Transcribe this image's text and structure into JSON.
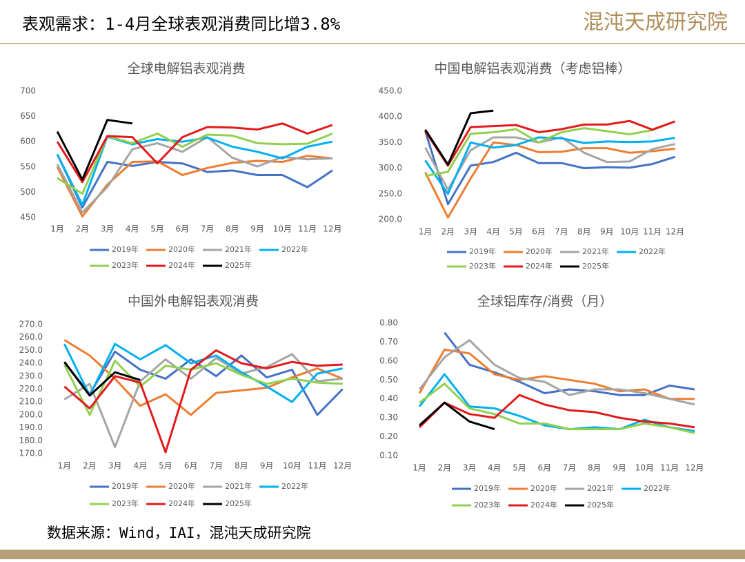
{
  "title": "表观需求：1-4月全球表观消费同比增3.8%",
  "logo": "混沌天成研究院",
  "source": "数据来源：Wind，IAI，混沌天成研究院",
  "chart_data": [
    {
      "type": "line",
      "title": "全球电解铝表观消费",
      "categories": [
        "1月",
        "2月",
        "3月",
        "4月",
        "5月",
        "6月",
        "7月",
        "8月",
        "9月",
        "10月",
        "11月",
        "12月"
      ],
      "ylim": [
        450,
        700
      ],
      "yticks": [
        450,
        500,
        550,
        600,
        650,
        700
      ],
      "grid": false,
      "series": [
        {
          "name": "2019年",
          "color": "#4472c4",
          "values": [
            575,
            470,
            560,
            552,
            560,
            557,
            540,
            543,
            534,
            534,
            510,
            543
          ]
        },
        {
          "name": "2020年",
          "color": "#ed7d31",
          "values": [
            550,
            452,
            515,
            560,
            561,
            534,
            548,
            558,
            562,
            560,
            572,
            567
          ]
        },
        {
          "name": "2021年",
          "color": "#a5a5a5",
          "values": [
            555,
            460,
            510,
            585,
            597,
            580,
            609,
            568,
            551,
            570,
            565,
            567
          ]
        },
        {
          "name": "2022年",
          "color": "#00b0f0",
          "values": [
            575,
            475,
            610,
            595,
            605,
            600,
            608,
            590,
            580,
            567,
            590,
            600
          ]
        },
        {
          "name": "2023年",
          "color": "#92d050",
          "values": [
            528,
            497,
            611,
            597,
            616,
            590,
            614,
            612,
            597,
            595,
            596,
            616
          ]
        },
        {
          "name": "2024年",
          "color": "#e31a1c",
          "values": [
            600,
            520,
            611,
            609,
            557,
            609,
            629,
            628,
            624,
            636,
            616,
            633
          ]
        },
        {
          "name": "2025年",
          "color": "#000000",
          "values": [
            620,
            525,
            643,
            636,
            null,
            null,
            null,
            null,
            null,
            null,
            null,
            null
          ]
        }
      ]
    },
    {
      "type": "line",
      "title": "中国电解铝表观消费（考虑铝棒）",
      "categories": [
        "1月",
        "2月",
        "3月",
        "4月",
        "5月",
        "6月",
        "7月",
        "8月",
        "9月",
        "10月",
        "11月",
        "12月"
      ],
      "ylim": [
        200,
        450
      ],
      "yticks": [
        {
          "value": 200,
          "label": "200.0"
        },
        {
          "value": 250,
          "label": "250.0"
        },
        {
          "value": 300,
          "label": "300.0"
        },
        {
          "value": 350,
          "label": "350.0"
        },
        {
          "value": 400,
          "label": "400.0"
        },
        {
          "value": 450,
          "label": "450.0"
        }
      ],
      "grid": false,
      "series": [
        {
          "name": "2019年",
          "color": "#4472c4",
          "values": [
            372,
            230,
            305,
            312,
            330,
            310,
            310,
            300,
            302,
            301,
            308,
            322
          ]
        },
        {
          "name": "2020年",
          "color": "#ed7d31",
          "values": [
            292,
            204,
            280,
            350,
            345,
            331,
            332,
            339,
            339,
            330,
            333,
            338
          ]
        },
        {
          "name": "2021年",
          "color": "#a5a5a5",
          "values": [
            340,
            258,
            335,
            360,
            360,
            350,
            360,
            330,
            312,
            313,
            337,
            347
          ]
        },
        {
          "name": "2022年",
          "color": "#00b0f0",
          "values": [
            315,
            250,
            350,
            340,
            345,
            360,
            358,
            349,
            352,
            351,
            352,
            359
          ]
        },
        {
          "name": "2023年",
          "color": "#92d050",
          "values": [
            285,
            293,
            367,
            370,
            376,
            350,
            370,
            378,
            372,
            366,
            374,
            391
          ]
        },
        {
          "name": "2024年",
          "color": "#e31a1c",
          "values": [
            372,
            305,
            380,
            382,
            384,
            370,
            376,
            385,
            385,
            392,
            375,
            391
          ]
        },
        {
          "name": "2025年",
          "color": "#000000",
          "values": [
            375,
            307,
            407,
            412,
            null,
            null,
            null,
            null,
            null,
            null,
            null,
            null
          ]
        }
      ]
    },
    {
      "type": "line",
      "title": "中国外电解铝表观消费",
      "categories": [
        "1月",
        "2月",
        "3月",
        "4月",
        "5月",
        "6月",
        "7月",
        "8月",
        "9月",
        "10月",
        "11月",
        "12月"
      ],
      "ylim": [
        170,
        270
      ],
      "yticks": [
        {
          "value": 170,
          "label": "170.0"
        },
        {
          "value": 180,
          "label": "180.0"
        },
        {
          "value": 190,
          "label": "190.0"
        },
        {
          "value": 200,
          "label": "200.0"
        },
        {
          "value": 210,
          "label": "210.0"
        },
        {
          "value": 220,
          "label": "220.0"
        },
        {
          "value": 230,
          "label": "230.0"
        },
        {
          "value": 240,
          "label": "240.0"
        },
        {
          "value": 250,
          "label": "250.0"
        },
        {
          "value": 260,
          "label": "260.0"
        },
        {
          "value": 270,
          "label": "270.0"
        }
      ],
      "grid": false,
      "series": [
        {
          "name": "2019年",
          "color": "#4472c4",
          "values": [
            241,
            216,
            249,
            235,
            228,
            243,
            230,
            246,
            229,
            235,
            200,
            220
          ]
        },
        {
          "name": "2020年",
          "color": "#ed7d31",
          "values": [
            258,
            246,
            228,
            207,
            216,
            200,
            217,
            219,
            221,
            229,
            236,
            228
          ]
        },
        {
          "name": "2021年",
          "color": "#a5a5a5",
          "values": [
            212,
            224,
            175,
            226,
            243,
            228,
            244,
            232,
            237,
            247,
            226,
            228
          ]
        },
        {
          "name": "2022年",
          "color": "#00b0f0",
          "values": [
            255,
            215,
            255,
            243,
            254,
            240,
            246,
            233,
            222,
            210,
            232,
            236
          ]
        },
        {
          "name": "2023年",
          "color": "#92d050",
          "values": [
            239,
            200,
            242,
            222,
            238,
            235,
            240,
            231,
            224,
            228,
            225,
            224
          ]
        },
        {
          "name": "2024年",
          "color": "#e31a1c",
          "values": [
            222,
            205,
            230,
            225,
            171,
            235,
            250,
            240,
            236,
            241,
            238,
            239
          ]
        },
        {
          "name": "2025年",
          "color": "#000000",
          "values": [
            241,
            215,
            233,
            227,
            null,
            null,
            null,
            null,
            null,
            null,
            null,
            null
          ]
        }
      ]
    },
    {
      "type": "line",
      "title": "全球铝库存/消费（月）",
      "categories": [
        "1月",
        "2月",
        "3月",
        "4月",
        "5月",
        "6月",
        "7月",
        "8月",
        "9月",
        "10月",
        "11月",
        "12月"
      ],
      "ylim": [
        0.1,
        0.8
      ],
      "yticks": [
        {
          "value": 0.1,
          "label": "0.10"
        },
        {
          "value": 0.2,
          "label": "0.20"
        },
        {
          "value": 0.3,
          "label": "0.30"
        },
        {
          "value": 0.4,
          "label": "0.40"
        },
        {
          "value": 0.5,
          "label": "0.50"
        },
        {
          "value": 0.6,
          "label": "0.60"
        },
        {
          "value": 0.7,
          "label": "0.70"
        },
        {
          "value": 0.8,
          "label": "0.80"
        }
      ],
      "grid": false,
      "series": [
        {
          "name": "2019年",
          "color": "#4472c4",
          "values": [
            null,
            0.75,
            0.58,
            0.54,
            0.49,
            0.43,
            0.45,
            0.44,
            0.42,
            0.42,
            0.47,
            0.45
          ]
        },
        {
          "name": "2020年",
          "color": "#ed7d31",
          "values": [
            0.43,
            0.66,
            0.64,
            0.53,
            0.5,
            0.52,
            0.5,
            0.48,
            0.44,
            0.45,
            0.4,
            0.4
          ]
        },
        {
          "name": "2021年",
          "color": "#a5a5a5",
          "values": [
            0.45,
            0.62,
            0.71,
            0.58,
            0.51,
            0.49,
            0.42,
            0.45,
            0.45,
            0.43,
            0.4,
            0.37
          ]
        },
        {
          "name": "2022年",
          "color": "#00b0f0",
          "values": [
            0.36,
            0.53,
            0.36,
            0.35,
            0.31,
            0.26,
            0.24,
            0.25,
            0.24,
            0.29,
            0.25,
            0.23
          ]
        },
        {
          "name": "2023年",
          "color": "#92d050",
          "values": [
            0.38,
            0.48,
            0.35,
            0.32,
            0.27,
            0.27,
            0.24,
            0.24,
            0.24,
            0.27,
            0.25,
            0.22
          ]
        },
        {
          "name": "2024年",
          "color": "#e31a1c",
          "values": [
            0.25,
            0.38,
            0.32,
            0.3,
            0.42,
            0.37,
            0.34,
            0.33,
            0.3,
            0.28,
            0.27,
            0.25
          ]
        },
        {
          "name": "2025年",
          "color": "#000000",
          "values": [
            0.26,
            0.38,
            0.28,
            0.24,
            null,
            null,
            null,
            null,
            null,
            null,
            null,
            null
          ]
        }
      ]
    }
  ]
}
